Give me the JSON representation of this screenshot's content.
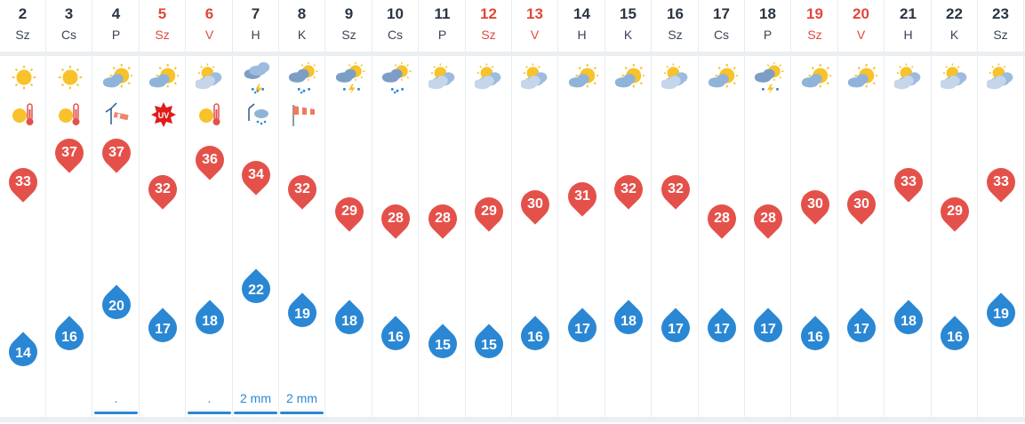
{
  "days": [
    {
      "num": "2",
      "name": "Sz",
      "weekend": false,
      "icon": "sun-icon",
      "extra": "heat-warning-icon",
      "max": "33",
      "min": "14",
      "precip": "",
      "bar": false
    },
    {
      "num": "3",
      "name": "Cs",
      "weekend": false,
      "icon": "sun-icon",
      "extra": "heat-warning-icon",
      "max": "37",
      "min": "16",
      "precip": "",
      "bar": false
    },
    {
      "num": "4",
      "name": "P",
      "weekend": false,
      "icon": "partly-cloudy-icon",
      "extra": "wind-warning-icon",
      "max": "37",
      "min": "20",
      "precip": ".",
      "bar": true
    },
    {
      "num": "5",
      "name": "Sz",
      "weekend": true,
      "icon": "partly-cloudy-icon",
      "extra": "uv-warning-icon",
      "max": "32",
      "min": "17",
      "precip": "",
      "bar": false
    },
    {
      "num": "6",
      "name": "V",
      "weekend": true,
      "icon": "cloudy-sunny-icon",
      "extra": "heat-warning-icon",
      "max": "36",
      "min": "18",
      "precip": ".",
      "bar": true
    },
    {
      "num": "7",
      "name": "H",
      "weekend": false,
      "icon": "thunderstorm-rain-icon",
      "extra": "storm-warning-icon",
      "max": "34",
      "min": "22",
      "precip": "2 mm",
      "bar": true
    },
    {
      "num": "8",
      "name": "K",
      "weekend": false,
      "icon": "sun-rain-icon",
      "extra": "windsock-icon",
      "max": "32",
      "min": "19",
      "precip": "2 mm",
      "bar": true
    },
    {
      "num": "9",
      "name": "Sz",
      "weekend": false,
      "icon": "thunderstorm-icon",
      "extra": "",
      "max": "29",
      "min": "18",
      "precip": "",
      "bar": false
    },
    {
      "num": "10",
      "name": "Cs",
      "weekend": false,
      "icon": "sun-rain-icon",
      "extra": "",
      "max": "28",
      "min": "16",
      "precip": "",
      "bar": false
    },
    {
      "num": "11",
      "name": "P",
      "weekend": false,
      "icon": "cloudy-sunny-icon",
      "extra": "",
      "max": "28",
      "min": "15",
      "precip": "",
      "bar": false
    },
    {
      "num": "12",
      "name": "Sz",
      "weekend": true,
      "icon": "cloudy-sunny-icon",
      "extra": "",
      "max": "29",
      "min": "15",
      "precip": "",
      "bar": false
    },
    {
      "num": "13",
      "name": "V",
      "weekend": true,
      "icon": "cloudy-sunny-icon",
      "extra": "",
      "max": "30",
      "min": "16",
      "precip": "",
      "bar": false
    },
    {
      "num": "14",
      "name": "H",
      "weekend": false,
      "icon": "partly-cloudy-icon",
      "extra": "",
      "max": "31",
      "min": "17",
      "precip": "",
      "bar": false
    },
    {
      "num": "15",
      "name": "K",
      "weekend": false,
      "icon": "partly-cloudy-icon",
      "extra": "",
      "max": "32",
      "min": "18",
      "precip": "",
      "bar": false
    },
    {
      "num": "16",
      "name": "Sz",
      "weekend": false,
      "icon": "cloudy-sunny-icon",
      "extra": "",
      "max": "32",
      "min": "17",
      "precip": "",
      "bar": false
    },
    {
      "num": "17",
      "name": "Cs",
      "weekend": false,
      "icon": "partly-cloudy-icon",
      "extra": "",
      "max": "28",
      "min": "17",
      "precip": "",
      "bar": false
    },
    {
      "num": "18",
      "name": "P",
      "weekend": false,
      "icon": "thunderstorm-icon",
      "extra": "",
      "max": "28",
      "min": "17",
      "precip": "",
      "bar": false
    },
    {
      "num": "19",
      "name": "Sz",
      "weekend": true,
      "icon": "partly-cloudy-icon",
      "extra": "",
      "max": "30",
      "min": "16",
      "precip": "",
      "bar": false
    },
    {
      "num": "20",
      "name": "V",
      "weekend": true,
      "icon": "partly-cloudy-icon",
      "extra": "",
      "max": "30",
      "min": "17",
      "precip": "",
      "bar": false
    },
    {
      "num": "21",
      "name": "H",
      "weekend": false,
      "icon": "cloudy-sunny-icon",
      "extra": "",
      "max": "33",
      "min": "18",
      "precip": "",
      "bar": false
    },
    {
      "num": "22",
      "name": "K",
      "weekend": false,
      "icon": "cloudy-sunny-icon",
      "extra": "",
      "max": "29",
      "min": "16",
      "precip": "",
      "bar": false
    },
    {
      "num": "23",
      "name": "Sz",
      "weekend": false,
      "icon": "cloudy-sunny-icon",
      "extra": "",
      "max": "33",
      "min": "19",
      "precip": "",
      "bar": false
    }
  ],
  "colors": {
    "max_pin": "#e4514a",
    "min_pin": "#2a87d4",
    "weekend": "#e2473b",
    "text": "#2b3544",
    "precip": "#2a87d4"
  }
}
